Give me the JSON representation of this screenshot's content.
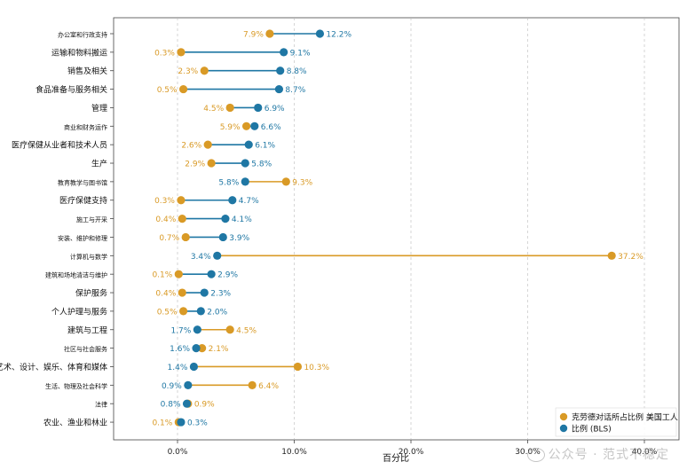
{
  "chart_data": {
    "type": "dumbbell",
    "xlabel": "百分比",
    "xlim": [
      -5.5,
      42.5
    ],
    "xticks": [
      0,
      10,
      20,
      30,
      40
    ],
    "xtick_labels": [
      "0.0%",
      "10.0%",
      "20.0%",
      "30.0%",
      "40.0%"
    ],
    "legend": {
      "position": "bottom-right",
      "entries": [
        "克劳德对话所占比例 美国工人",
        "比例 (BLS)"
      ]
    },
    "colors": {
      "claude": "#d99a26",
      "bls": "#1f77a4"
    },
    "categories": [
      "办公室和行政支持",
      "运输和物料搬运",
      "销售及相关",
      "食品准备与服务相关",
      "管理",
      "商业和财务运作",
      "医疗保健从业者和技术人员",
      "生产",
      "教育教学与图书馆",
      "医疗保健支持",
      "施工与开采",
      "安装、维护和修理",
      "计算机与数学",
      "建筑和场地清洁与维护",
      "保护服务",
      "个人护理与服务",
      "建筑与工程",
      "社区与社会服务",
      "艺术、设计、娱乐、体育和媒体",
      "生活、物理及社会科学",
      "法律",
      "农业、渔业和林业"
    ],
    "category_sizes": [
      7,
      9,
      9,
      9,
      9,
      7,
      9,
      9,
      7,
      9,
      7,
      7,
      7,
      7,
      9,
      9,
      9,
      7,
      9,
      7,
      7,
      9
    ],
    "series": [
      {
        "name": "克劳德对话所占比例 美国工人",
        "values": [
          7.9,
          0.3,
          2.3,
          0.5,
          4.5,
          5.9,
          2.6,
          2.9,
          9.3,
          0.3,
          0.4,
          0.7,
          37.2,
          0.1,
          0.4,
          0.5,
          4.5,
          2.1,
          10.3,
          6.4,
          0.9,
          0.1
        ],
        "labels": [
          "7.9%",
          "0.3%",
          "2.3%",
          "0.5%",
          "4.5%",
          "5.9%",
          "2.6%",
          "2.9%",
          "9.3%",
          "0.3%",
          "0.4%",
          "0.7%",
          "37.2%",
          "0.1%",
          "0.4%",
          "0.5%",
          "4.5%",
          "2.1%",
          "10.3%",
          "6.4%",
          "0.9%",
          "0.1%"
        ]
      },
      {
        "name": "比例 (BLS)",
        "values": [
          12.2,
          9.1,
          8.8,
          8.7,
          6.9,
          6.6,
          6.1,
          5.8,
          5.8,
          4.7,
          4.1,
          3.9,
          3.4,
          2.9,
          2.3,
          2.0,
          1.7,
          1.6,
          1.4,
          0.9,
          0.8,
          0.3
        ],
        "labels": [
          "12.2%",
          "9.1%",
          "8.8%",
          "8.7%",
          "6.9%",
          "6.6%",
          "6.1%",
          "5.8%",
          "5.8%",
          "4.7%",
          "4.1%",
          "3.9%",
          "3.4%",
          "2.9%",
          "2.3%",
          "2.0%",
          "1.7%",
          "1.6%",
          "1.4%",
          "0.9%",
          "0.8%",
          "0.3%"
        ]
      }
    ]
  },
  "watermark": "公众号 · 范式不稳定"
}
